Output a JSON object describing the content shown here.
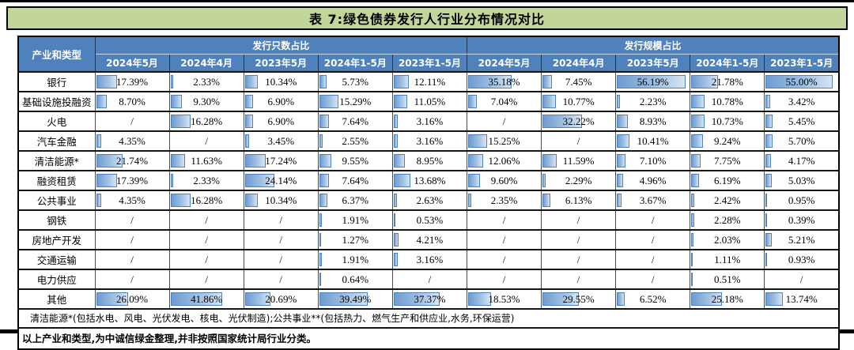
{
  "title": "表 7:绿色债券发行人行业分布情况对比",
  "colors": {
    "title_bg": "#c2d69b",
    "header_bg": "#4f81bd",
    "bar_border": "#4f81bd",
    "bar_fill_start": "#6f9bd1",
    "bar_fill_end": "#d7e4f4"
  },
  "table": {
    "corner_header": "产业和类型",
    "groups": [
      {
        "label": "发行只数占比",
        "columns": [
          "2024年5月",
          "2024年4月",
          "2023年5月",
          "2024年1-5月",
          "2023年1-5月"
        ]
      },
      {
        "label": "发行规模占比",
        "columns": [
          "2024年5月",
          "2024年4月",
          "2023年5月",
          "2024年1-5月",
          "2023年1-5月"
        ]
      }
    ],
    "bar_scale_max": 60,
    "rows": [
      {
        "label": "银行",
        "values": [
          "17.39%",
          "2.33%",
          "10.34%",
          "5.73%",
          "12.11%",
          "35.18%",
          "7.45%",
          "56.19%",
          "21.78%",
          "55.00%"
        ]
      },
      {
        "label": "基础设施投融资",
        "values": [
          "8.70%",
          "9.30%",
          "6.90%",
          "15.29%",
          "11.05%",
          "7.04%",
          "10.77%",
          "2.23%",
          "10.78%",
          "3.42%"
        ]
      },
      {
        "label": "火电",
        "values": [
          "/",
          "16.28%",
          "6.90%",
          "7.64%",
          "3.16%",
          "/",
          "32.22%",
          "8.93%",
          "10.73%",
          "5.45%"
        ]
      },
      {
        "label": "汽车金融",
        "values": [
          "4.35%",
          "/",
          "3.45%",
          "2.55%",
          "3.16%",
          "15.25%",
          "/",
          "10.41%",
          "9.24%",
          "5.70%"
        ]
      },
      {
        "label": "清洁能源*",
        "values": [
          "21.74%",
          "11.63%",
          "17.24%",
          "9.55%",
          "8.95%",
          "12.06%",
          "11.59%",
          "7.10%",
          "7.75%",
          "4.17%"
        ]
      },
      {
        "label": "融资租赁",
        "values": [
          "17.39%",
          "2.33%",
          "24.14%",
          "7.64%",
          "13.68%",
          "9.60%",
          "2.29%",
          "4.96%",
          "6.19%",
          "5.03%"
        ]
      },
      {
        "label": "公共事业",
        "values": [
          "4.35%",
          "16.28%",
          "10.34%",
          "6.37%",
          "2.63%",
          "2.35%",
          "6.13%",
          "3.67%",
          "2.42%",
          "0.95%"
        ]
      },
      {
        "label": "钢铁",
        "values": [
          "/",
          "/",
          "/",
          "1.91%",
          "0.53%",
          "/",
          "/",
          "/",
          "2.28%",
          "0.39%"
        ]
      },
      {
        "label": "房地产开发",
        "values": [
          "/",
          "/",
          "/",
          "1.27%",
          "4.21%",
          "/",
          "/",
          "/",
          "2.03%",
          "5.21%"
        ]
      },
      {
        "label": "交通运输",
        "values": [
          "/",
          "/",
          "/",
          "1.91%",
          "3.16%",
          "/",
          "/",
          "/",
          "1.11%",
          "0.93%"
        ]
      },
      {
        "label": "电力供应",
        "values": [
          "/",
          "/",
          "/",
          "0.64%",
          "/",
          "/",
          "/",
          "/",
          "0.51%",
          "/"
        ]
      },
      {
        "label": "其他",
        "values": [
          "26.09%",
          "41.86%",
          "20.69%",
          "39.49%",
          "37.37%",
          "18.53%",
          "29.55%",
          "6.52%",
          "25.18%",
          "13.74%"
        ]
      }
    ]
  },
  "notes": [
    "清洁能源*(包括水电、风电、光伏发电、核电、光伏制造);公共事业**(包括热力、燃气生产和供应业,水务,环保运营)",
    "以上产业和类型,为中诚信绿金整理,并非按照国家统计局行业分类。"
  ]
}
